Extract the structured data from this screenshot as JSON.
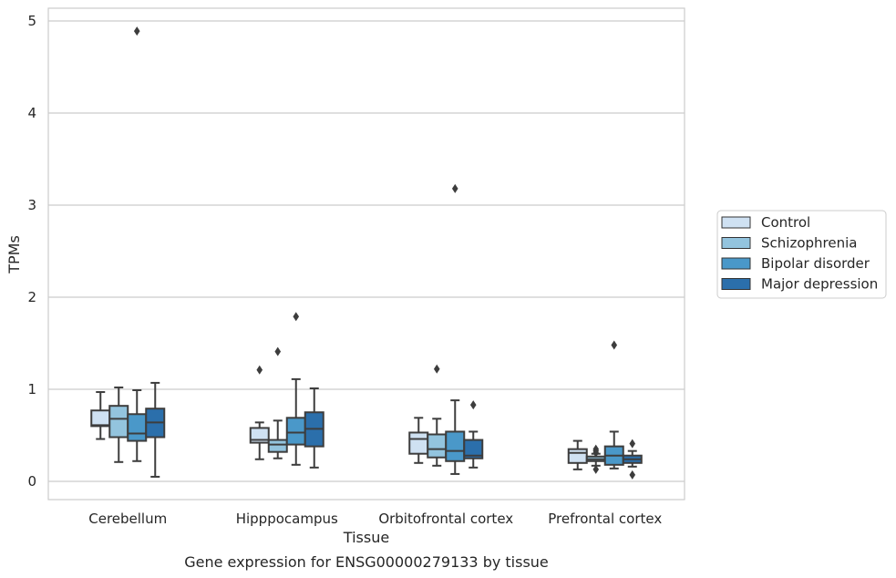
{
  "chart_data": {
    "type": "box",
    "title": "Gene expression for ENSG00000279133 by tissue",
    "xlabel": "Tissue",
    "ylabel": "TPMs",
    "ylim": [
      -0.2,
      5.15
    ],
    "yticks": [
      0,
      1,
      2,
      3,
      4,
      5
    ],
    "grid": "horizontal",
    "legend_position": "right",
    "categories": [
      "Cerebellum",
      "Hipppocampus",
      "Orbitofrontal cortex",
      "Prefrontal cortex"
    ],
    "series": [
      {
        "name": "Control",
        "color": "#cfe1f2",
        "boxes": [
          {
            "whislo": 0.46,
            "q1": 0.6,
            "med": 0.61,
            "q3": 0.77,
            "whishi": 0.97,
            "fliers": []
          },
          {
            "whislo": 0.24,
            "q1": 0.42,
            "med": 0.45,
            "q3": 0.58,
            "whishi": 0.64,
            "fliers": [
              1.21
            ]
          },
          {
            "whislo": 0.2,
            "q1": 0.3,
            "med": 0.46,
            "q3": 0.53,
            "whishi": 0.69,
            "fliers": []
          },
          {
            "whislo": 0.13,
            "q1": 0.2,
            "med": 0.31,
            "q3": 0.35,
            "whishi": 0.44,
            "fliers": []
          }
        ]
      },
      {
        "name": "Schizophrenia",
        "color": "#93c4de",
        "boxes": [
          {
            "whislo": 0.21,
            "q1": 0.48,
            "med": 0.68,
            "q3": 0.82,
            "whishi": 1.02,
            "fliers": []
          },
          {
            "whislo": 0.25,
            "q1": 0.32,
            "med": 0.4,
            "q3": 0.45,
            "whishi": 0.66,
            "fliers": [
              1.41
            ]
          },
          {
            "whislo": 0.17,
            "q1": 0.26,
            "med": 0.35,
            "q3": 0.51,
            "whishi": 0.68,
            "fliers": [
              1.22
            ]
          },
          {
            "whislo": 0.17,
            "q1": 0.22,
            "med": 0.24,
            "q3": 0.27,
            "whishi": 0.3,
            "fliers": [
              0.13,
              0.31,
              0.33,
              0.35
            ]
          }
        ]
      },
      {
        "name": "Bipolar disorder",
        "color": "#4a98c9",
        "boxes": [
          {
            "whislo": 0.22,
            "q1": 0.44,
            "med": 0.52,
            "q3": 0.73,
            "whishi": 0.99,
            "fliers": [
              4.89
            ]
          },
          {
            "whislo": 0.18,
            "q1": 0.4,
            "med": 0.53,
            "q3": 0.69,
            "whishi": 1.11,
            "fliers": [
              1.79
            ]
          },
          {
            "whislo": 0.08,
            "q1": 0.22,
            "med": 0.33,
            "q3": 0.54,
            "whishi": 0.88,
            "fliers": [
              3.18
            ]
          },
          {
            "whislo": 0.14,
            "q1": 0.18,
            "med": 0.28,
            "q3": 0.38,
            "whishi": 0.54,
            "fliers": [
              1.48
            ]
          }
        ]
      },
      {
        "name": "Major depression",
        "color": "#2b6fab",
        "boxes": [
          {
            "whislo": 0.05,
            "q1": 0.48,
            "med": 0.64,
            "q3": 0.79,
            "whishi": 1.07,
            "fliers": []
          },
          {
            "whislo": 0.15,
            "q1": 0.38,
            "med": 0.57,
            "q3": 0.75,
            "whishi": 1.01,
            "fliers": []
          },
          {
            "whislo": 0.15,
            "q1": 0.25,
            "med": 0.28,
            "q3": 0.45,
            "whishi": 0.54,
            "fliers": [
              0.83
            ]
          },
          {
            "whislo": 0.16,
            "q1": 0.2,
            "med": 0.24,
            "q3": 0.28,
            "whishi": 0.33,
            "fliers": [
              0.07,
              0.41
            ]
          }
        ]
      }
    ]
  }
}
